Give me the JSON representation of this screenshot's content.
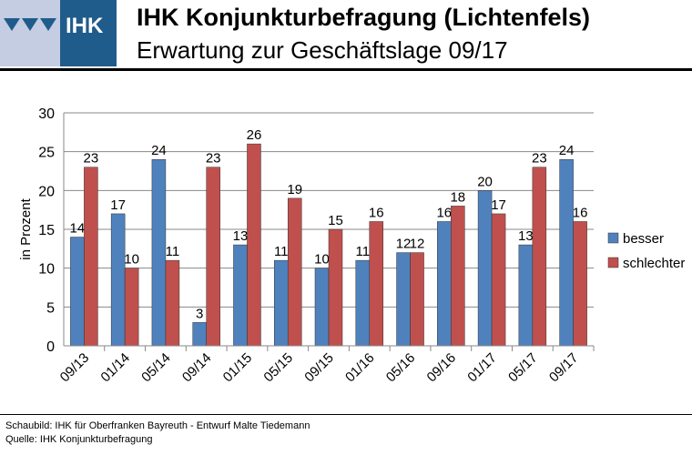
{
  "header": {
    "logo_text": "IHK",
    "title": "IHK Konjunkturbefragung (Lichtenfels)",
    "subtitle": "Erwartung zur Geschäftslage 09/17"
  },
  "footer": {
    "line1": "Schaubild: IHK für Oberfranken Bayreuth - Entwurf Malte Tiedemann",
    "line2": "Quelle: IHK Konjunkturbefragung"
  },
  "chart_data": {
    "type": "bar",
    "title": "Erwartung zur Geschäftslage 09/17",
    "xlabel": "",
    "ylabel": "in Prozent",
    "ylim": [
      0,
      30
    ],
    "yticks": [
      0,
      5,
      10,
      15,
      20,
      25,
      30
    ],
    "grid": true,
    "legend": "right",
    "categories": [
      "09/13",
      "01/14",
      "05/14",
      "09/14",
      "01/15",
      "05/15",
      "09/15",
      "01/16",
      "05/16",
      "09/16",
      "01/17",
      "05/17",
      "09/17"
    ],
    "series": [
      {
        "name": "besser",
        "color": "#4f81bd",
        "values": [
          14,
          17,
          24,
          3,
          13,
          11,
          10,
          11,
          12,
          16,
          20,
          13,
          24
        ]
      },
      {
        "name": "schlechter",
        "color": "#c0504d",
        "values": [
          23,
          10,
          11,
          23,
          26,
          19,
          15,
          16,
          12,
          18,
          17,
          23,
          16
        ]
      }
    ]
  }
}
